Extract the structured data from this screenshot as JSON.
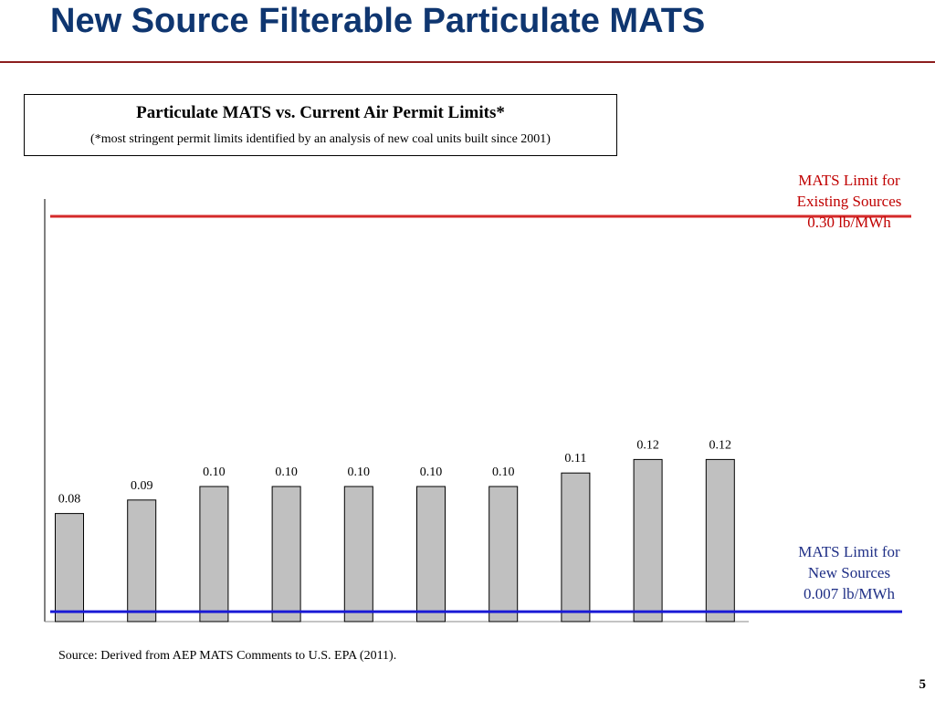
{
  "slide": {
    "title": "New Source Filterable Particulate MATS",
    "page_number": "5",
    "source_note": "Source: Derived from AEP MATS Comments to U.S. EPA (2011)."
  },
  "caption": {
    "title": "Particulate MATS vs. Current Air Permit Limits*",
    "subtitle": "(*most stringent permit limits identified by an analysis of new coal units built since 2001)"
  },
  "limits": {
    "existing": {
      "line1": "MATS Limit for",
      "line2": "Existing Sources",
      "line3": "0.30 lb/MWh",
      "value": 0.3,
      "color": "#d42a2a"
    },
    "new": {
      "line1": "MATS Limit for",
      "line2": "New Sources",
      "line3": "0.007 lb/MWh",
      "value": 0.007,
      "color": "#1a1ad6"
    }
  },
  "chart_data": {
    "type": "bar",
    "values": [
      0.08,
      0.09,
      0.1,
      0.1,
      0.1,
      0.1,
      0.1,
      0.11,
      0.12,
      0.12
    ],
    "value_labels": [
      "0.08",
      "0.09",
      "0.10",
      "0.10",
      "0.10",
      "0.10",
      "0.10",
      "0.11",
      "0.12",
      "0.12"
    ],
    "ylim": [
      0,
      0.3
    ],
    "bar_color": "#c0c0c0",
    "bar_outline": "#000000",
    "grid": false,
    "reference_lines": [
      {
        "value": 0.3
      },
      {
        "value": 0.007
      }
    ]
  }
}
